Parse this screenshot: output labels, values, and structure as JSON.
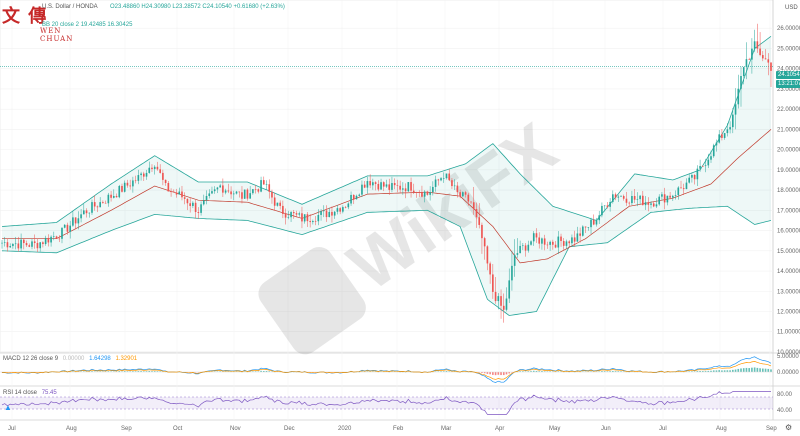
{
  "header": {
    "symbol": "U.S. Dollar / HONDA",
    "ohlc": "O23.48860 H24.30980 L23.28572 C24.10540 +0.61680 (+2.63%)",
    "bb_legend": "BB 20 close 2 19.42485 16.30425",
    "currency": "USD",
    "last_price": "24.10540",
    "countdown": "13:21:07"
  },
  "watermark": {
    "logo_cn": "文 傳",
    "logo_en": "WEN CHUAN",
    "wikifx": "WikiFX"
  },
  "macd": {
    "label": "MACD 12 26 close 9",
    "v1": "0.00000",
    "v2": "1.64298",
    "v3": "1.32901"
  },
  "rsi": {
    "label": "RSI 14 close",
    "value": "75.45"
  },
  "colors": {
    "up": "#26a69a",
    "down": "#ef5350",
    "band": "#26a69a",
    "basis": "#c0392b",
    "rsi": "#7e57c2",
    "macd": "#2196f3",
    "signal": "#ff9800"
  },
  "icons": [
    "chart-settings-icon",
    "gear-icon"
  ],
  "chart_data": {
    "type": "candlestick",
    "title": "U.S. Dollar / HONDA",
    "x_ticks": [
      "Jul",
      "Aug",
      "Sep",
      "Oct",
      "Nov",
      "Dec",
      "2020",
      "Feb",
      "Mar",
      "Apr",
      "May",
      "Jun",
      "Jul",
      "Aug",
      "Sep"
    ],
    "y_ticks": [
      "26.00000",
      "25.00000",
      "24.00000",
      "23.00000",
      "22.00000",
      "21.00000",
      "20.00000",
      "19.00000",
      "18.00000",
      "17.00000",
      "16.00000",
      "15.00000",
      "14.00000",
      "13.00000",
      "12.00000",
      "11.00000",
      "10.00000"
    ],
    "ylim": [
      9.8,
      27
    ],
    "close_path": [
      [
        0,
        15.4
      ],
      [
        12,
        15.3
      ],
      [
        22,
        15.9
      ],
      [
        30,
        16.9
      ],
      [
        40,
        17.7
      ],
      [
        50,
        18.6
      ],
      [
        56,
        19.4
      ],
      [
        60,
        18.1
      ],
      [
        67,
        17.6
      ],
      [
        72,
        17.0
      ],
      [
        80,
        18.2
      ],
      [
        88,
        17.7
      ],
      [
        96,
        18.3
      ],
      [
        102,
        17.0
      ],
      [
        110,
        16.6
      ],
      [
        118,
        16.8
      ],
      [
        126,
        17.3
      ],
      [
        134,
        18.5
      ],
      [
        142,
        18.1
      ],
      [
        150,
        18.2
      ],
      [
        156,
        17.8
      ],
      [
        162,
        18.8
      ],
      [
        167,
        17.8
      ],
      [
        172,
        17.4
      ],
      [
        176,
        15.6
      ],
      [
        180,
        13.0
      ],
      [
        184,
        12.0
      ],
      [
        188,
        14.8
      ],
      [
        195,
        15.6
      ],
      [
        202,
        15.4
      ],
      [
        210,
        15.6
      ],
      [
        218,
        16.6
      ],
      [
        224,
        17.8
      ],
      [
        230,
        17.6
      ],
      [
        238,
        17.4
      ],
      [
        246,
        17.8
      ],
      [
        254,
        18.6
      ],
      [
        262,
        20.3
      ],
      [
        268,
        21.5
      ],
      [
        272,
        24.2
      ],
      [
        276,
        25.1
      ],
      [
        282,
        24.1
      ]
    ],
    "bollinger_upper": [
      [
        0,
        16.2
      ],
      [
        20,
        16.4
      ],
      [
        40,
        18.3
      ],
      [
        56,
        19.7
      ],
      [
        72,
        18.4
      ],
      [
        90,
        18.4
      ],
      [
        110,
        17.3
      ],
      [
        134,
        18.7
      ],
      [
        156,
        18.7
      ],
      [
        170,
        19.3
      ],
      [
        180,
        20.3
      ],
      [
        190,
        18.8
      ],
      [
        202,
        17.2
      ],
      [
        218,
        16.5
      ],
      [
        232,
        18.8
      ],
      [
        246,
        18.5
      ],
      [
        256,
        19.0
      ],
      [
        266,
        21.2
      ],
      [
        276,
        25.0
      ],
      [
        282,
        25.6
      ]
    ],
    "bollinger_lower": [
      [
        0,
        15.0
      ],
      [
        20,
        14.9
      ],
      [
        40,
        16.0
      ],
      [
        56,
        16.8
      ],
      [
        72,
        16.6
      ],
      [
        90,
        16.5
      ],
      [
        110,
        15.8
      ],
      [
        134,
        16.9
      ],
      [
        156,
        17.0
      ],
      [
        168,
        16.2
      ],
      [
        178,
        12.6
      ],
      [
        186,
        11.8
      ],
      [
        196,
        12.0
      ],
      [
        208,
        15.2
      ],
      [
        222,
        15.4
      ],
      [
        238,
        16.9
      ],
      [
        252,
        17.1
      ],
      [
        266,
        17.2
      ],
      [
        276,
        16.3
      ],
      [
        282,
        16.5
      ]
    ],
    "bollinger_basis": [
      [
        0,
        15.6
      ],
      [
        20,
        15.6
      ],
      [
        40,
        17.0
      ],
      [
        56,
        18.2
      ],
      [
        72,
        17.5
      ],
      [
        90,
        17.4
      ],
      [
        110,
        16.6
      ],
      [
        134,
        17.8
      ],
      [
        156,
        17.9
      ],
      [
        168,
        17.7
      ],
      [
        180,
        16.2
      ],
      [
        190,
        14.4
      ],
      [
        200,
        14.6
      ],
      [
        214,
        15.6
      ],
      [
        230,
        17.2
      ],
      [
        246,
        17.6
      ],
      [
        260,
        18.3
      ],
      [
        270,
        19.6
      ],
      [
        282,
        21.0
      ]
    ],
    "macd_ticks": [
      "5.00000",
      "0.00000"
    ],
    "rsi_ticks": [
      "80.00",
      "40.00"
    ]
  }
}
